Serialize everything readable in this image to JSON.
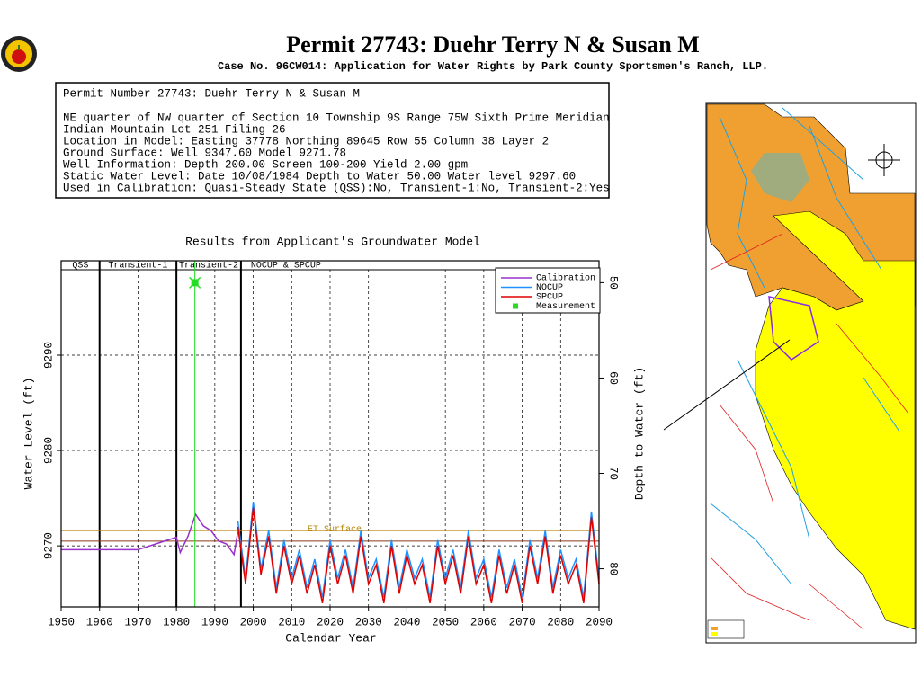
{
  "header": {
    "title": "Permit 27743:  Duehr Terry N & Susan M",
    "subtitle": "Case No. 96CW014: Application for Water Rights by Park County Sportsmen's Ranch, LLP."
  },
  "info": {
    "lines": [
      "Permit Number 27743: Duehr Terry N & Susan M",
      "NE quarter of NW quarter of Section 10 Township 9S Range 75W Sixth Prime Meridian",
      "Indian Mountain Lot 251 Filing 26",
      "Location in Model: Easting 37778 Northing  89645 Row   55 Column 38 Layer 2",
      "Ground Surface: Well   9347.60 Model   9271.78",
      "Well Information: Depth    200.00 Screen 100-200 Yield      2.00 gpm",
      "Static Water Level: Date 10/08/1984 Depth to Water     50.00 Water level   9297.60",
      "Used in Calibration: Quasi-Steady State (QSS):No, Transient-1:No, Transient-2:Yes"
    ]
  },
  "chart_data": {
    "type": "line",
    "title": "Results from Applicant's Groundwater Model",
    "x_label": "Calendar Year",
    "y_label": "Water Level (ft)",
    "y2_label": "Depth to Water (ft)",
    "xlim": [
      1950,
      2090
    ],
    "xticks": [
      1950,
      1960,
      1970,
      1980,
      1990,
      2000,
      2010,
      2020,
      2030,
      2040,
      2050,
      2060,
      2070,
      2080,
      2090
    ],
    "ylim": [
      9263.6,
      9299.9
    ],
    "yticks": [
      9270,
      9280,
      9290
    ],
    "y2lim": [
      84,
      47.7
    ],
    "y2ticks": [
      50,
      60,
      70,
      80
    ],
    "grid": true,
    "legend": "upper right",
    "periods": [
      {
        "label": "QSS",
        "start": 1950,
        "end": 1960
      },
      {
        "label": "Transient-1",
        "start": 1960,
        "end": 1980
      },
      {
        "label": "Transient-2",
        "start": 1980,
        "end": 1996.8
      },
      {
        "label": "NOCUP  & SPCUP",
        "start": 1996.8,
        "end": 2090
      }
    ],
    "reference_lines": [
      {
        "label": "ET Surface",
        "value": 9271.6,
        "color": "#b8860b"
      },
      {
        "value": 9270.5,
        "color": "#8b3a1a"
      }
    ],
    "series": [
      {
        "name": "Calibration",
        "color": "#9932cc",
        "x": [
          1950,
          1960,
          1970,
          1980,
          1981,
          1983,
          1985,
          1987,
          1989,
          1991,
          1993,
          1995,
          1996
        ],
        "values": [
          9269.6,
          9269.6,
          9269.6,
          9270.9,
          9269.3,
          9271,
          9273.3,
          9272.1,
          9271.6,
          9270.5,
          9270.2,
          9269.1,
          9271.5
        ]
      },
      {
        "name": "NOCUP",
        "color": "#1e90ff",
        "x": [
          1996,
          1998,
          2000,
          2002,
          2004,
          2006,
          2008,
          2010,
          2012,
          2014,
          2016,
          2018,
          2020,
          2022,
          2024,
          2026,
          2028,
          2030,
          2032,
          2034,
          2036,
          2038,
          2040,
          2042,
          2044,
          2046,
          2048,
          2050,
          2052,
          2054,
          2056,
          2058,
          2060,
          2062,
          2064,
          2066,
          2068,
          2070,
          2072,
          2074,
          2076,
          2078,
          2080,
          2082,
          2084,
          2086,
          2088,
          2090
        ],
        "values": [
          9272.6,
          9266.6,
          9274.6,
          9267.6,
          9271.6,
          9265.6,
          9270.6,
          9266.6,
          9269.6,
          9265.6,
          9268.6,
          9264.6,
          9270.6,
          9266.6,
          9269.6,
          9265.6,
          9271.6,
          9266.6,
          9268.6,
          9264.6,
          9270.6,
          9265.6,
          9269.6,
          9266.6,
          9268.6,
          9264.6,
          9270.6,
          9266.6,
          9269.6,
          9265.6,
          9271.6,
          9266.6,
          9268.6,
          9264.6,
          9269.6,
          9265.6,
          9268.6,
          9264.6,
          9270.6,
          9266.6,
          9271.6,
          9265.6,
          9269.6,
          9266.6,
          9268.6,
          9264.6,
          9273.6,
          9266.6
        ]
      },
      {
        "name": "SPCUP",
        "color": "#e00000",
        "x": [
          1996,
          1998,
          2000,
          2002,
          2004,
          2006,
          2008,
          2010,
          2012,
          2014,
          2016,
          2018,
          2020,
          2022,
          2024,
          2026,
          2028,
          2030,
          2032,
          2034,
          2036,
          2038,
          2040,
          2042,
          2044,
          2046,
          2048,
          2050,
          2052,
          2054,
          2056,
          2058,
          2060,
          2062,
          2064,
          2066,
          2068,
          2070,
          2072,
          2074,
          2076,
          2078,
          2080,
          2082,
          2084,
          2086,
          2088,
          2090
        ],
        "values": [
          9272,
          9266,
          9274,
          9267,
          9271,
          9265,
          9270,
          9266,
          9269,
          9265,
          9268,
          9264,
          9270,
          9266,
          9269,
          9265,
          9271,
          9266,
          9268,
          9264,
          9270,
          9265,
          9269,
          9266,
          9268,
          9264,
          9270,
          9266,
          9269,
          9265,
          9271,
          9266,
          9268,
          9264,
          9269,
          9265,
          9268,
          9264,
          9270,
          9266,
          9271,
          9265,
          9269,
          9266,
          9268,
          9264,
          9273,
          9266
        ]
      },
      {
        "name": "Measurement",
        "color": "#22dd22",
        "marker": true,
        "x": [
          1984.8
        ],
        "values": [
          9297.6
        ]
      }
    ]
  }
}
